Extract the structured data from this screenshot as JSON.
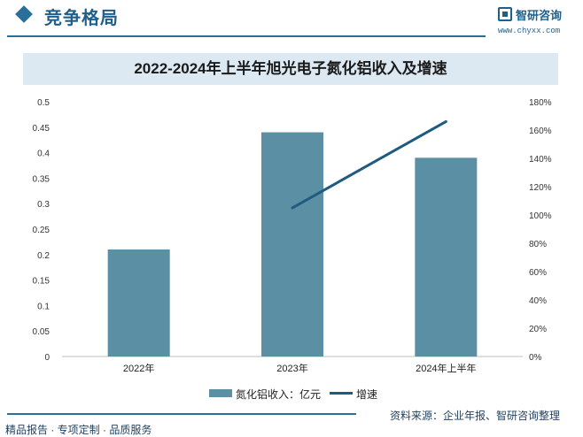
{
  "header": {
    "title": "竞争格局",
    "logo_text": "智研咨询",
    "logo_url": "www.chyxx.com"
  },
  "chart_data": {
    "type": "bar",
    "title": "2022-2024年上半年旭光电子氮化铝收入及增速",
    "categories": [
      "2022年",
      "2023年",
      "2024年上半年"
    ],
    "series": [
      {
        "name": "氮化铝收入：亿元",
        "type": "bar",
        "axis": "left",
        "values": [
          0.21,
          0.44,
          0.39
        ],
        "color": "#5b8fa3"
      },
      {
        "name": "增速",
        "type": "line",
        "axis": "right",
        "values": [
          null,
          105,
          166
        ],
        "color": "#1f5a80"
      }
    ],
    "y_left": {
      "min": 0,
      "max": 0.5,
      "ticks": [
        "0",
        "0.05",
        "0.1",
        "0.15",
        "0.2",
        "0.25",
        "0.3",
        "0.35",
        "0.4",
        "0.45",
        "0.5"
      ]
    },
    "y_right": {
      "min": 0,
      "max": 180,
      "ticks": [
        "0%",
        "20%",
        "40%",
        "60%",
        "80%",
        "100%",
        "120%",
        "140%",
        "160%",
        "180%"
      ]
    },
    "grid": false,
    "legend_position": "bottom"
  },
  "footer": {
    "left": "精品报告 · 专项定制 · 品质服务",
    "source": "资料来源：企业年报、智研咨询整理"
  }
}
